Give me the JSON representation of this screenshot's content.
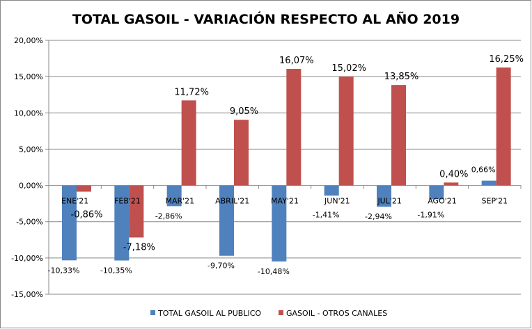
{
  "chart_data": {
    "type": "bar",
    "title": "TOTAL GASOIL - VARIACIÓN RESPECTO AL AÑO 2019",
    "xlabel": "",
    "ylabel": "",
    "categories": [
      "ENE'21",
      "FEB'21",
      "MAR'21",
      "ABRIL'21",
      "MAY'21",
      "JUN'21",
      "JUL'21",
      "AGO'21",
      "SEP'21"
    ],
    "series": [
      {
        "name": "TOTAL GASOIL AL PUBLICO",
        "color": "#4F81BD",
        "values": [
          -10.33,
          -10.35,
          -2.86,
          -9.7,
          -10.48,
          -1.41,
          -2.94,
          -1.91,
          0.66
        ],
        "labels": [
          "-10,33%",
          "-10,35%",
          "-2,86%",
          "-9,70%",
          "-10,48%",
          "-1,41%",
          "-2,94%",
          "-1,91%",
          "0,66%"
        ]
      },
      {
        "name": "GASOIL - OTROS CANALES",
        "color": "#C0504D",
        "values": [
          -0.86,
          -7.18,
          11.72,
          9.05,
          16.07,
          15.02,
          13.85,
          0.4,
          16.25
        ],
        "labels": [
          "-0,86%",
          "-7,18%",
          "11,72%",
          "9,05%",
          "16,07%",
          "15,02%",
          "13,85%",
          "0,40%",
          "16,25%"
        ]
      }
    ],
    "ylim": [
      -15,
      20
    ],
    "yticks": [
      20,
      15,
      10,
      5,
      0,
      -5,
      -10,
      -15
    ],
    "ytick_labels": [
      "20,00%",
      "15,00%",
      "10,00%",
      "5,00%",
      "0,00%",
      "-5,00%",
      "-10,00%",
      "-15,00%"
    ],
    "grid": true,
    "legend_position": "bottom"
  }
}
